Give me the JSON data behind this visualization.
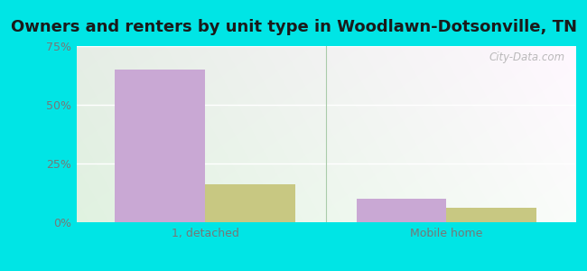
{
  "title": "Owners and renters by unit type in Woodlawn-Dotsonville, TN",
  "categories": [
    "1, detached",
    "Mobile home"
  ],
  "owner_values": [
    65.0,
    10.0
  ],
  "renter_values": [
    16.0,
    6.0
  ],
  "owner_color": "#c9a8d4",
  "renter_color": "#c8c882",
  "background_color": "#00e5e5",
  "ylim": [
    0,
    75
  ],
  "yticks": [
    0,
    25,
    50,
    75
  ],
  "yticklabels": [
    "0%",
    "25%",
    "50%",
    "75%"
  ],
  "bar_width": 0.28,
  "watermark": "City-Data.com",
  "title_fontsize": 13,
  "tick_fontsize": 9,
  "legend_fontsize": 9,
  "group_positions": [
    0.25,
    1.0
  ],
  "xlim": [
    -0.15,
    1.4
  ]
}
